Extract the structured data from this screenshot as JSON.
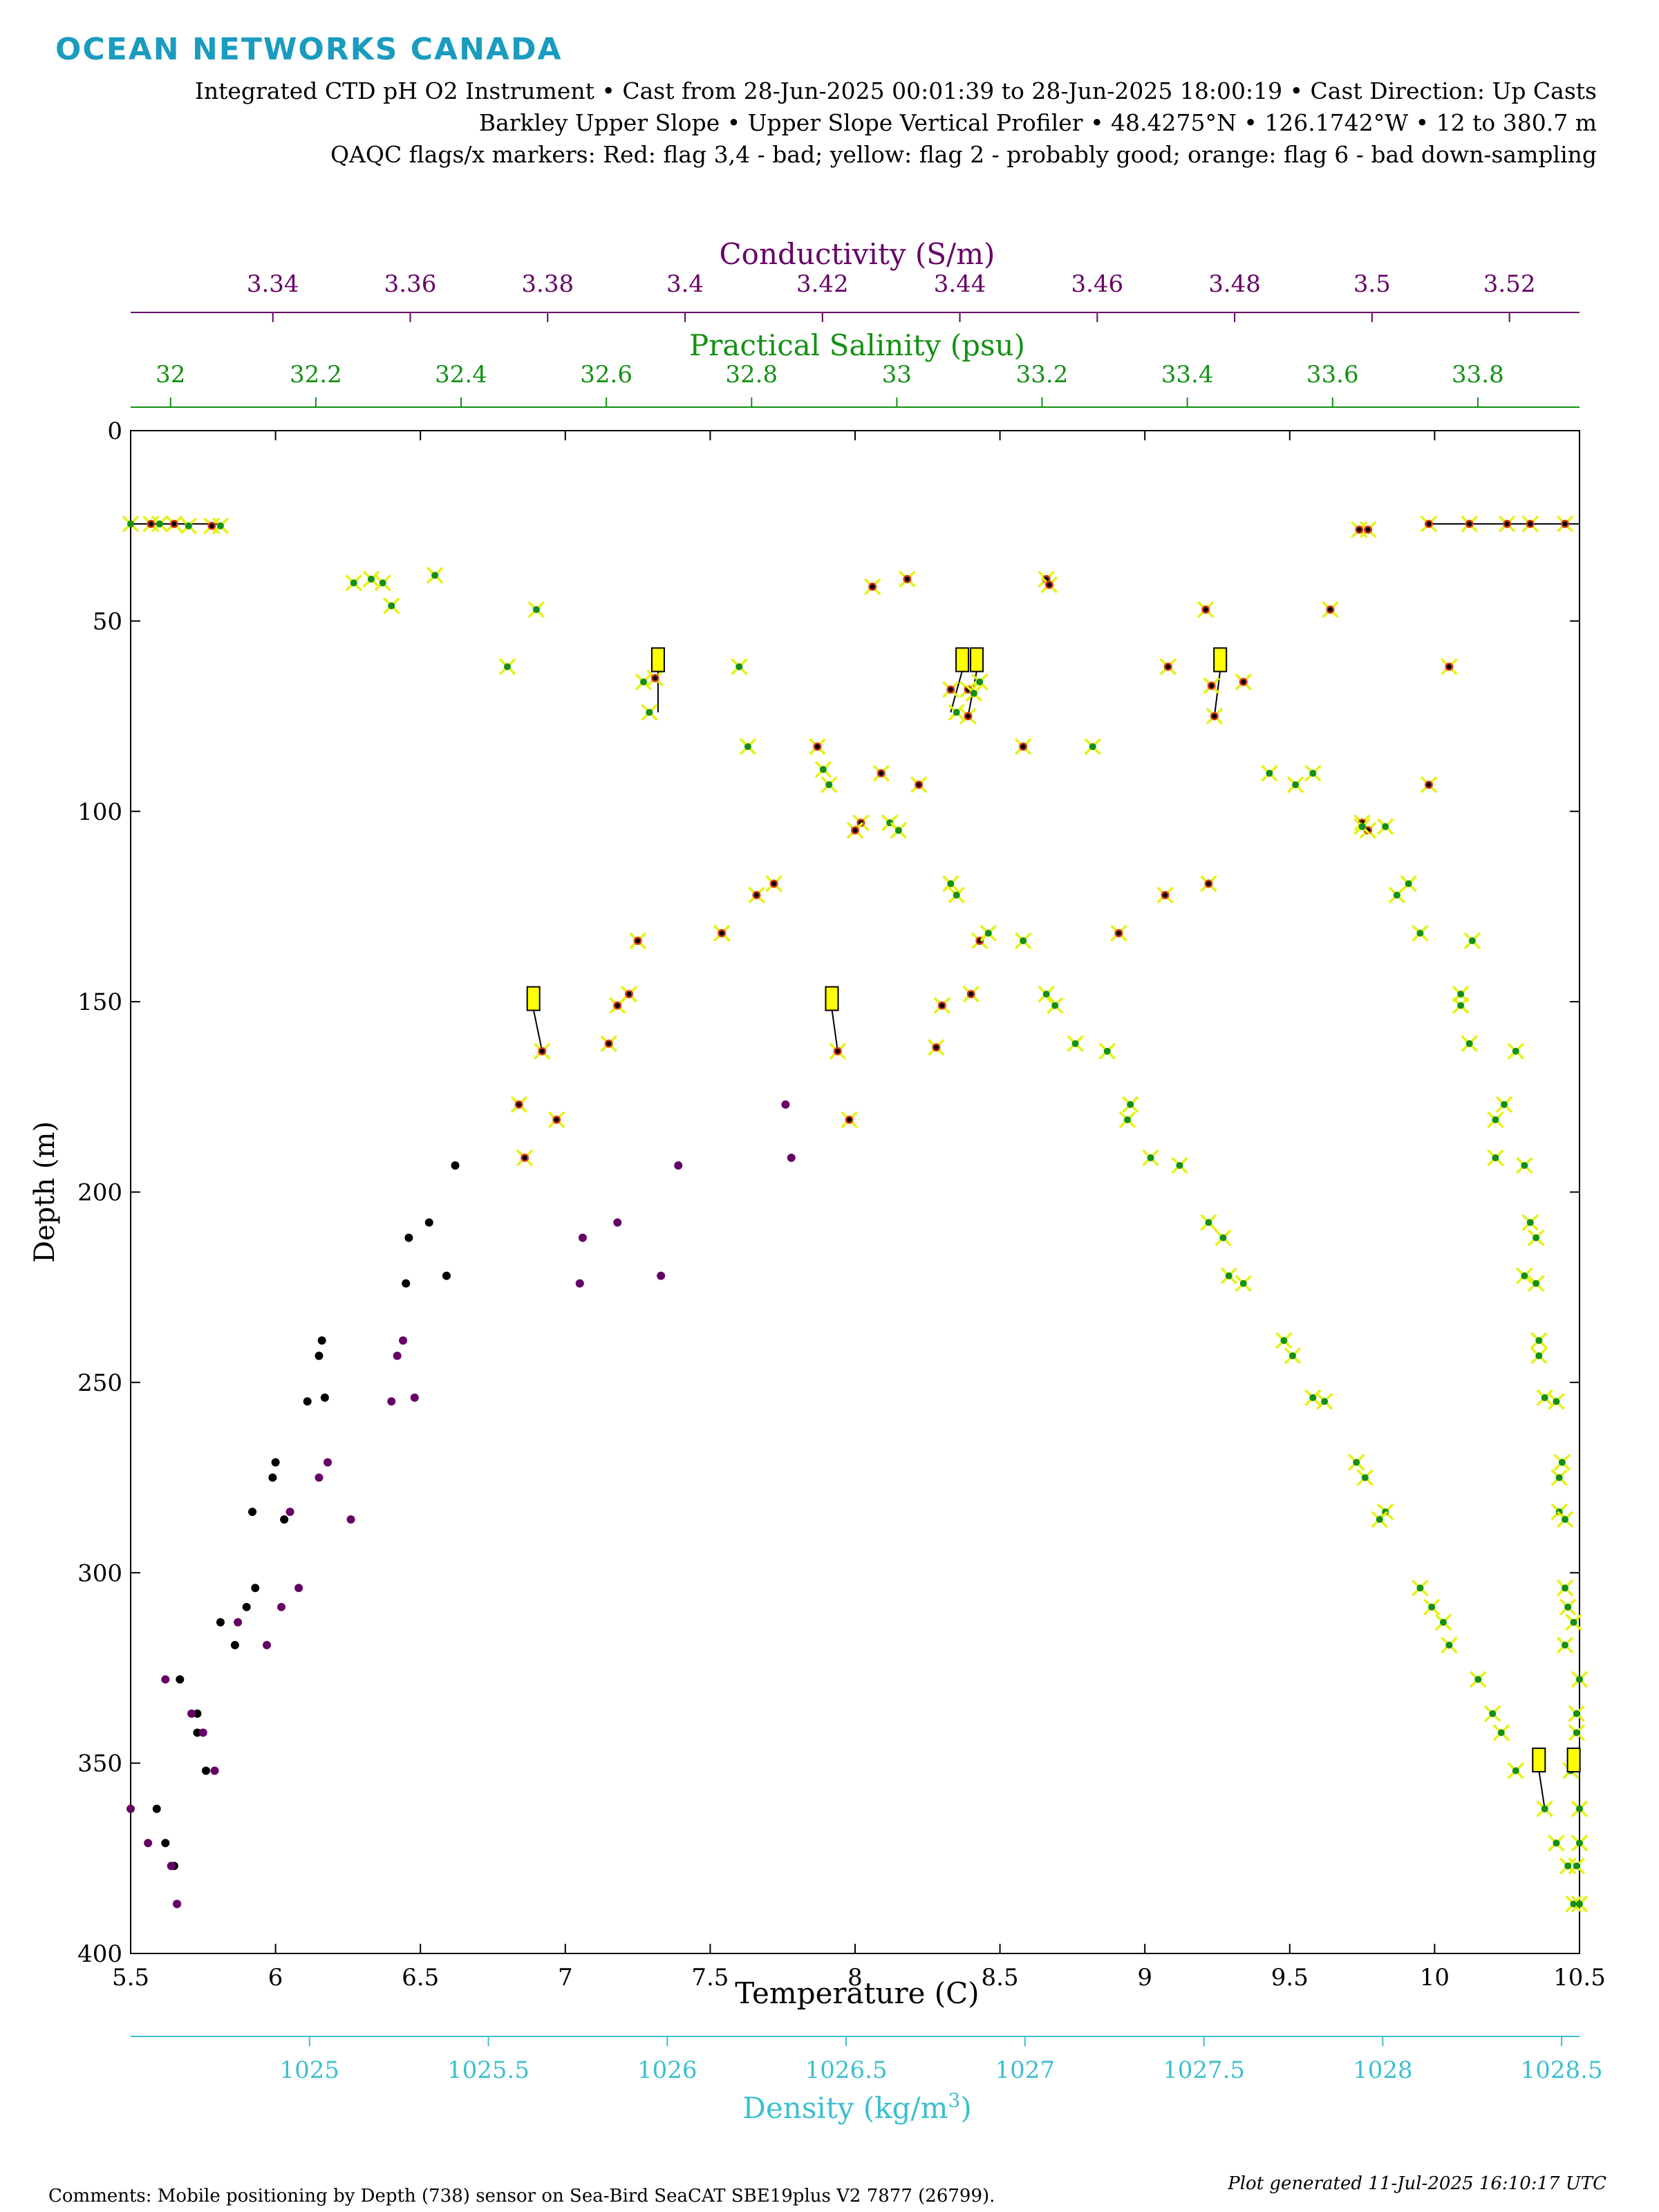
{
  "branding": {
    "logo_text": "OCEAN NETWORKS CANADA"
  },
  "header": {
    "line1": "Integrated CTD pH O2 Instrument • Cast from 28-Jun-2025 00:01:39 to 28-Jun-2025 18:00:19 • Cast Direction: Up Casts",
    "line2": "Barkley Upper Slope • Upper Slope Vertical Profiler • 48.4275°N • 126.1742°W • 12 to 380.7 m",
    "line3": "QAQC flags/x markers: Red: flag 3,4 - bad; yellow: flag 2 - probably good; orange: flag 6 - bad down-sampling"
  },
  "footer": {
    "comments": "Comments: Mobile positioning by Depth (738) sensor on Sea-Bird SeaCAT SBE19plus V2 7877 (26799).",
    "generated": "Plot generated 11-Jul-2025 16:10:17 UTC"
  },
  "colors": {
    "temperature": "#000000",
    "conductivity": "#660066",
    "salinity": "#139113",
    "density": "#3bbfd0",
    "flag_marker": "#e6f20f",
    "flag_box": "#ffff00",
    "bad_flag": "#d43a1e",
    "logo": "#1a9bc0"
  },
  "chart_data": {
    "type": "scatter",
    "y_axis": {
      "label": "Depth (m)",
      "range": [
        0,
        400
      ],
      "reversed": true,
      "ticks": [
        "0",
        "50",
        "100",
        "150",
        "200",
        "250",
        "300",
        "350",
        "400"
      ]
    },
    "x_axes": [
      {
        "id": "temperature",
        "label": "Temperature (C)",
        "position": "bottom",
        "range": [
          5.5,
          10.5
        ],
        "ticks": [
          "5.5",
          "6",
          "6.5",
          "7",
          "7.5",
          "8",
          "8.5",
          "9",
          "9.5",
          "10",
          "10.5"
        ]
      },
      {
        "id": "density",
        "label": "Density (kg/m",
        "label_sup": "3",
        "label_end": ")",
        "position": "bottom-offset",
        "range": [
          1024.5,
          1028.55
        ],
        "ticks": [
          "1025",
          "1025.5",
          "1026",
          "1026.5",
          "1027",
          "1027.5",
          "1028",
          "1028.5"
        ]
      },
      {
        "id": "salinity",
        "label": "Practical Salinity (psu)",
        "position": "top",
        "range": [
          31.945,
          33.94
        ],
        "ticks": [
          "32",
          "32.2",
          "32.4",
          "32.6",
          "32.8",
          "33",
          "33.2",
          "33.4",
          "33.6",
          "33.8"
        ]
      },
      {
        "id": "conductivity",
        "label": "Conductivity (S/m)",
        "position": "top-offset",
        "range": [
          3.3193,
          3.5302
        ],
        "ticks": [
          "3.34",
          "3.36",
          "3.38",
          "3.4",
          "3.42",
          "3.44",
          "3.46",
          "3.48",
          "3.5",
          "3.52"
        ]
      }
    ],
    "series": [
      {
        "name": "Temperature",
        "axis": "temperature",
        "color": "#000000",
        "points": [
          [
            5.78,
            25
          ],
          [
            5.65,
            24.5
          ],
          [
            5.57,
            24.5
          ],
          [
            9.98,
            24.5
          ],
          [
            10.12,
            24.5
          ],
          [
            10.25,
            24.5
          ],
          [
            10.33,
            24.5
          ],
          [
            10.45,
            24.5
          ],
          [
            9.74,
            26
          ],
          [
            9.77,
            26
          ],
          [
            8.06,
            41
          ],
          [
            8.18,
            39
          ],
          [
            8.66,
            39
          ],
          [
            8.67,
            40.5
          ],
          [
            9.21,
            47
          ],
          [
            9.64,
            47
          ],
          [
            7.31,
            65
          ],
          [
            8.33,
            68
          ],
          [
            8.39,
            68
          ],
          [
            9.23,
            67
          ],
          [
            9.34,
            66
          ],
          [
            9.24,
            75
          ],
          [
            8.39,
            75
          ],
          [
            9.08,
            62
          ],
          [
            10.05,
            62
          ],
          [
            7.87,
            83
          ],
          [
            8.58,
            83
          ],
          [
            8.09,
            90
          ],
          [
            8.22,
            93
          ],
          [
            9.98,
            93
          ],
          [
            8.02,
            103
          ],
          [
            8.0,
            105
          ],
          [
            9.75,
            103
          ],
          [
            9.77,
            105
          ],
          [
            7.72,
            119
          ],
          [
            7.66,
            122
          ],
          [
            9.22,
            119
          ],
          [
            9.07,
            122
          ],
          [
            7.54,
            132
          ],
          [
            8.91,
            132
          ],
          [
            8.43,
            134
          ],
          [
            7.25,
            134
          ],
          [
            8.3,
            151
          ],
          [
            8.4,
            148
          ],
          [
            7.22,
            148
          ],
          [
            7.18,
            151
          ],
          [
            8.28,
            162
          ],
          [
            7.15,
            161
          ],
          [
            6.92,
            163
          ],
          [
            7.94,
            163
          ],
          [
            6.84,
            177
          ],
          [
            6.97,
            181
          ],
          [
            7.98,
            181
          ],
          [
            6.86,
            191
          ],
          [
            6.62,
            193
          ],
          [
            6.53,
            208
          ],
          [
            6.46,
            212
          ],
          [
            6.59,
            222
          ],
          [
            6.45,
            224
          ],
          [
            6.16,
            239
          ],
          [
            6.15,
            243
          ],
          [
            6.17,
            254
          ],
          [
            6.11,
            255
          ],
          [
            6.0,
            271
          ],
          [
            5.99,
            275
          ],
          [
            5.92,
            284
          ],
          [
            6.03,
            286
          ],
          [
            5.93,
            304
          ],
          [
            5.9,
            309
          ],
          [
            5.81,
            313
          ],
          [
            5.86,
            319
          ],
          [
            5.67,
            328
          ],
          [
            5.73,
            337
          ],
          [
            5.73,
            342
          ],
          [
            5.76,
            352
          ],
          [
            5.59,
            362
          ],
          [
            5.62,
            371
          ],
          [
            5.65,
            377
          ],
          [
            5.66,
            387
          ]
        ]
      },
      {
        "name": "Conductivity",
        "axis": "temperature",
        "color": "#660066",
        "points": [
          [
            7.76,
            177
          ],
          [
            7.78,
            191
          ],
          [
            7.39,
            193
          ],
          [
            7.18,
            208
          ],
          [
            7.06,
            212
          ],
          [
            7.33,
            222
          ],
          [
            7.05,
            224
          ],
          [
            6.44,
            239
          ],
          [
            6.42,
            243
          ],
          [
            6.48,
            254
          ],
          [
            6.4,
            255
          ],
          [
            6.18,
            271
          ],
          [
            6.15,
            275
          ],
          [
            6.05,
            284
          ],
          [
            6.26,
            286
          ],
          [
            6.08,
            304
          ],
          [
            6.02,
            309
          ],
          [
            5.87,
            313
          ],
          [
            5.97,
            319
          ],
          [
            5.62,
            328
          ],
          [
            5.71,
            337
          ],
          [
            5.75,
            342
          ],
          [
            5.79,
            352
          ],
          [
            5.5,
            362
          ],
          [
            5.56,
            371
          ],
          [
            5.64,
            377
          ],
          [
            5.66,
            387
          ]
        ]
      },
      {
        "name": "Salinity",
        "axis": "temperature",
        "color": "#139113",
        "points": [
          [
            5.5,
            24.5
          ],
          [
            5.6,
            24.5
          ],
          [
            5.7,
            25
          ],
          [
            5.81,
            25
          ],
          [
            6.55,
            38
          ],
          [
            6.27,
            40
          ],
          [
            6.33,
            39
          ],
          [
            6.37,
            40
          ],
          [
            6.4,
            46
          ],
          [
            6.9,
            47
          ],
          [
            6.8,
            62
          ],
          [
            7.6,
            62
          ],
          [
            7.27,
            66
          ],
          [
            7.29,
            74
          ],
          [
            8.43,
            66
          ],
          [
            8.41,
            69
          ],
          [
            8.35,
            74
          ],
          [
            7.63,
            83
          ],
          [
            8.82,
            83
          ],
          [
            7.89,
            89
          ],
          [
            7.91,
            93
          ],
          [
            8.12,
            103
          ],
          [
            8.15,
            105
          ],
          [
            9.43,
            90
          ],
          [
            9.52,
            93
          ],
          [
            9.58,
            90
          ],
          [
            9.83,
            104
          ],
          [
            9.75,
            104
          ],
          [
            8.33,
            119
          ],
          [
            8.35,
            122
          ],
          [
            9.91,
            119
          ],
          [
            9.87,
            122
          ],
          [
            8.46,
            132
          ],
          [
            8.58,
            134
          ],
          [
            9.95,
            132
          ],
          [
            10.13,
            134
          ],
          [
            8.66,
            148
          ],
          [
            8.69,
            151
          ],
          [
            8.76,
            161
          ],
          [
            8.87,
            163
          ],
          [
            10.09,
            148
          ],
          [
            10.09,
            151
          ],
          [
            10.12,
            161
          ],
          [
            10.28,
            163
          ],
          [
            8.95,
            177
          ],
          [
            8.94,
            181
          ],
          [
            9.02,
            191
          ],
          [
            9.12,
            193
          ],
          [
            10.24,
            177
          ],
          [
            10.21,
            181
          ],
          [
            10.21,
            191
          ],
          [
            10.31,
            193
          ],
          [
            9.22,
            208
          ],
          [
            9.27,
            212
          ],
          [
            9.29,
            222
          ],
          [
            9.34,
            224
          ],
          [
            10.33,
            208
          ],
          [
            10.35,
            212
          ],
          [
            10.31,
            222
          ],
          [
            10.35,
            224
          ],
          [
            9.48,
            239
          ],
          [
            9.51,
            243
          ],
          [
            9.58,
            254
          ],
          [
            9.62,
            255
          ],
          [
            10.36,
            239
          ],
          [
            10.36,
            243
          ],
          [
            10.38,
            254
          ],
          [
            10.42,
            255
          ],
          [
            9.73,
            271
          ],
          [
            9.76,
            275
          ],
          [
            9.83,
            284
          ],
          [
            9.81,
            286
          ],
          [
            10.44,
            271
          ],
          [
            10.43,
            275
          ],
          [
            10.43,
            284
          ],
          [
            10.45,
            286
          ],
          [
            9.95,
            304
          ],
          [
            9.99,
            309
          ],
          [
            10.03,
            313
          ],
          [
            10.05,
            319
          ],
          [
            10.45,
            304
          ],
          [
            10.46,
            309
          ],
          [
            10.48,
            313
          ],
          [
            10.45,
            319
          ],
          [
            10.15,
            328
          ],
          [
            10.2,
            337
          ],
          [
            10.23,
            342
          ],
          [
            10.28,
            352
          ],
          [
            10.5,
            328
          ],
          [
            10.49,
            337
          ],
          [
            10.49,
            342
          ],
          [
            10.47,
            352
          ],
          [
            10.38,
            362
          ],
          [
            10.42,
            371
          ],
          [
            10.46,
            377
          ],
          [
            10.48,
            387
          ],
          [
            10.5,
            362
          ],
          [
            10.5,
            371
          ],
          [
            10.49,
            377
          ],
          [
            10.5,
            387
          ]
        ]
      }
    ],
    "flag_boxes": [
      [
        7.32,
        60
      ],
      [
        8.37,
        60
      ],
      [
        8.42,
        60
      ],
      [
        9.26,
        60
      ],
      [
        6.89,
        149
      ],
      [
        7.92,
        149
      ],
      [
        10.36,
        349
      ],
      [
        10.48,
        349
      ]
    ],
    "connector_lines": [
      {
        "from": [
          7.32,
          63
        ],
        "to": [
          7.32,
          74
        ]
      },
      {
        "from": [
          8.37,
          63
        ],
        "to": [
          8.33,
          74
        ]
      },
      {
        "from": [
          8.42,
          63
        ],
        "to": [
          8.39,
          75
        ]
      },
      {
        "from": [
          9.26,
          63
        ],
        "to": [
          9.24,
          75
        ]
      },
      {
        "from": [
          6.89,
          152
        ],
        "to": [
          6.92,
          163
        ]
      },
      {
        "from": [
          7.92,
          152
        ],
        "to": [
          7.94,
          163
        ]
      },
      {
        "from": [
          10.36,
          352
        ],
        "to": [
          10.38,
          362
        ]
      },
      {
        "from": [
          9.98,
          24.5
        ],
        "to": [
          10.5,
          24.5
        ]
      },
      {
        "from": [
          5.5,
          24.5
        ],
        "to": [
          5.81,
          24.5
        ]
      }
    ]
  }
}
